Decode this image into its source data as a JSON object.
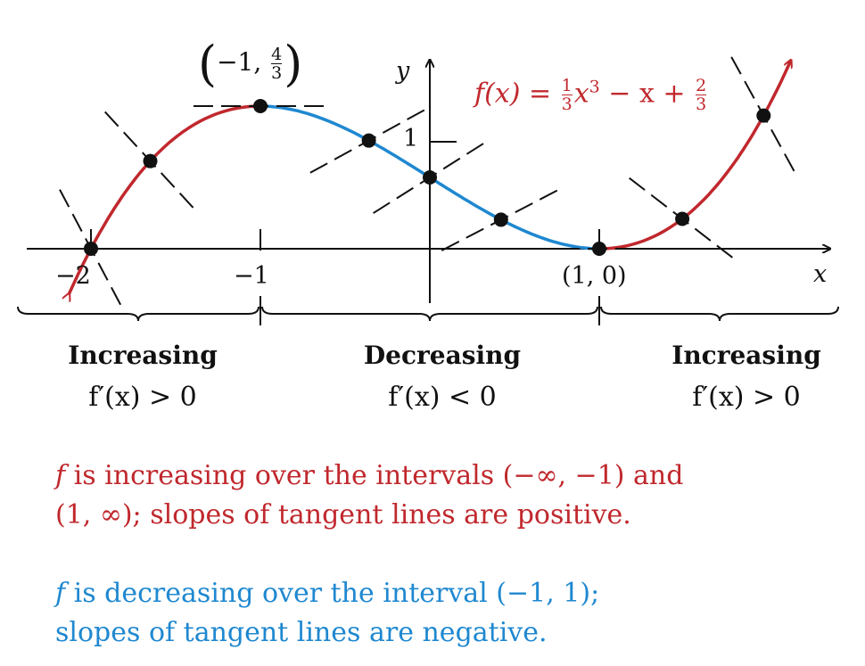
{
  "chart_data": {
    "type": "line",
    "title": "f(x) = 1/3 x^3 − x + 2/3",
    "function": {
      "a3": 0.3333,
      "a2": 0,
      "a1": -1,
      "a0": 0.6667
    },
    "xrange": [
      -2.13,
      2.13
    ],
    "segments": [
      {
        "from": -2.13,
        "to": -1,
        "color": "#c0282d",
        "label": "increasing"
      },
      {
        "from": -1,
        "to": 1,
        "color": "#1f88d0",
        "label": "decreasing"
      },
      {
        "from": 1,
        "to": 2.13,
        "color": "#c0282d",
        "label": "increasing"
      }
    ],
    "points_x": [
      -2,
      -1.65,
      -1,
      -0.36,
      0,
      0.42,
      1,
      1.49,
      1.97
    ],
    "xlabel": "x",
    "ylabel": "y",
    "x_ticks": [
      {
        "value": -2,
        "label": "−2"
      },
      {
        "value": -1,
        "label": "−1"
      },
      {
        "value": 1,
        "label": "(1, 0)"
      }
    ],
    "y_ticks": [
      {
        "value": 1,
        "label": "1"
      }
    ],
    "max_point_label": {
      "x": "−1",
      "y_num": "4",
      "y_den": "3"
    },
    "equation": {
      "lhs": "f(x) = ",
      "a_num": "1",
      "a_den": "3",
      "mid": "x",
      "exp": "3",
      "rest": " − x + ",
      "c_num": "2",
      "c_den": "3"
    },
    "colors": {
      "increasing": "#c0282d",
      "decreasing": "#1f88d0"
    }
  },
  "intervals": [
    {
      "heading": "Increasing",
      "condition": "f′(x) > 0"
    },
    {
      "heading": "Decreasing",
      "condition": "f′(x) < 0"
    },
    {
      "heading": "Increasing",
      "condition": "f′(x) > 0"
    }
  ],
  "notes": {
    "increasing_f": "f",
    "increasing_text": " is increasing over the intervals (−∞, −1) and",
    "increasing_text2": "(1, ∞); slopes of tangent lines are positive.",
    "decreasing_f": "f",
    "decreasing_text": " is decreasing over the interval (−1, 1);",
    "decreasing_text2": "slopes of tangent lines are negative."
  }
}
